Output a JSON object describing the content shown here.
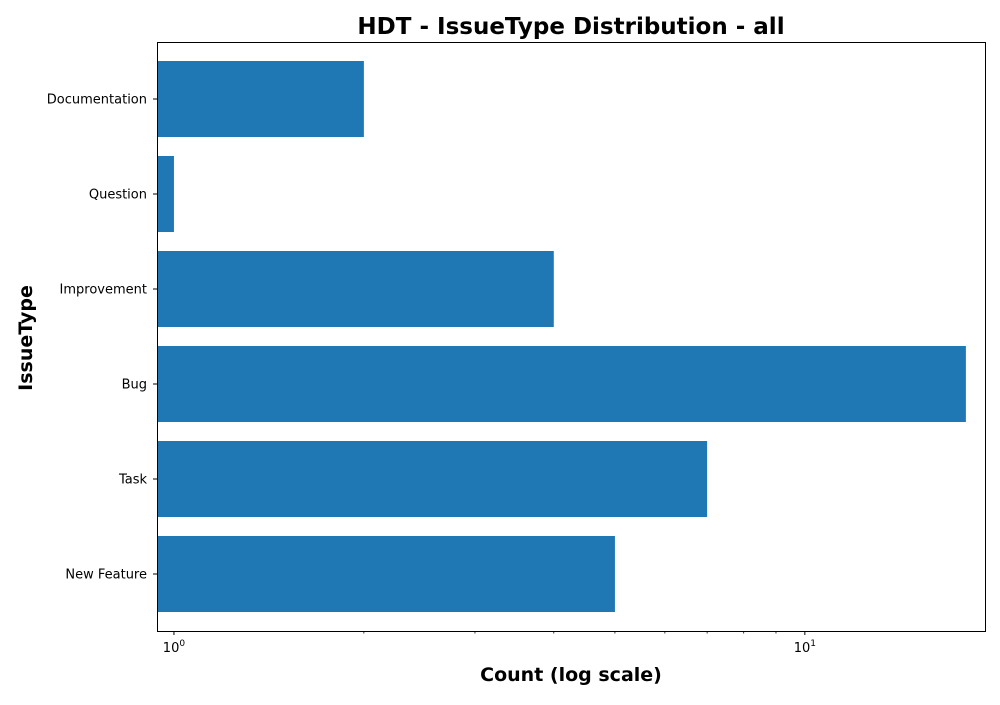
{
  "chart_data": {
    "type": "bar",
    "orientation": "horizontal",
    "title": "HDT - IssueType Distribution - all",
    "xlabel": "Count (log scale)",
    "ylabel": "IssueType",
    "x_scale": "log",
    "xlim": [
      0.94,
      19.3
    ],
    "categories": [
      "New Feature",
      "Task",
      "Bug",
      "Improvement",
      "Question",
      "Documentation"
    ],
    "values": [
      5,
      7,
      18,
      4,
      1,
      2
    ],
    "bar_color": "#1f77b4",
    "x_ticks": [
      {
        "value": 1,
        "base": "10",
        "exponent": "0"
      },
      {
        "value": 10,
        "base": "10",
        "exponent": "1"
      }
    ],
    "grid": false,
    "legend": "none"
  }
}
